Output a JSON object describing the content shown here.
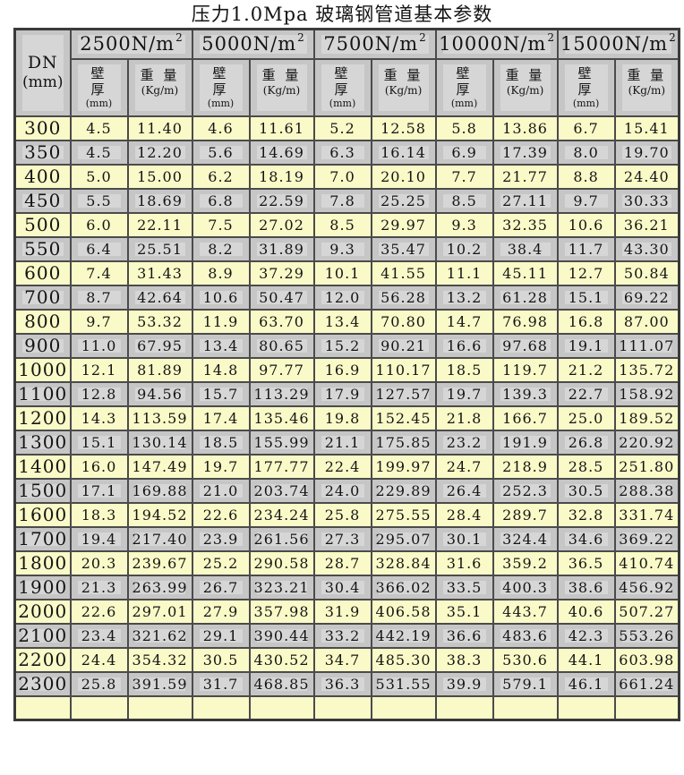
{
  "title": "压力1.0Mpa 玻璃钢管道基本参数",
  "colors": {
    "page_bg": "#ffffff",
    "row_yellow": "#fafac8",
    "row_gray": "#c6c6c6",
    "cell_patch_gray": "#d6d6d6",
    "border": "#4b4b4b",
    "outer_border": "#3a3a3a",
    "text": "#141414"
  },
  "table": {
    "corner_header": {
      "line1": "DN",
      "line2": "(mm)"
    },
    "groups": [
      {
        "load": "2500N/m",
        "sup": "2"
      },
      {
        "load": "5000N/m",
        "sup": "2"
      },
      {
        "load": "7500N/m",
        "sup": "2"
      },
      {
        "load": "10000N/m",
        "sup": "2"
      },
      {
        "load": "15000N/m",
        "sup": "2"
      }
    ],
    "sub_header": {
      "thickness_lines": [
        "壁",
        "厚",
        "(mm)"
      ],
      "weight_lines": [
        "重 量",
        "(Kg/m)"
      ]
    },
    "has_partial_bottom_row": true,
    "rows": [
      {
        "dn": "300",
        "values": [
          "4.5",
          "11.40",
          "4.6",
          "11.61",
          "5.2",
          "12.58",
          "5.8",
          "13.86",
          "6.7",
          "15.41"
        ]
      },
      {
        "dn": "350",
        "values": [
          "4.5",
          "12.20",
          "5.6",
          "14.69",
          "6.3",
          "16.14",
          "6.9",
          "17.39",
          "8.0",
          "19.70"
        ]
      },
      {
        "dn": "400",
        "values": [
          "5.0",
          "15.00",
          "6.2",
          "18.19",
          "7.0",
          "20.10",
          "7.7",
          "21.77",
          "8.8",
          "24.40"
        ]
      },
      {
        "dn": "450",
        "values": [
          "5.5",
          "18.69",
          "6.8",
          "22.59",
          "7.8",
          "25.25",
          "8.5",
          "27.11",
          "9.7",
          "30.33"
        ]
      },
      {
        "dn": "500",
        "values": [
          "6.0",
          "22.11",
          "7.5",
          "27.02",
          "8.5",
          "29.97",
          "9.3",
          "32.35",
          "10.6",
          "36.21"
        ]
      },
      {
        "dn": "550",
        "values": [
          "6.4",
          "25.51",
          "8.2",
          "31.89",
          "9.3",
          "35.47",
          "10.2",
          "38.4",
          "11.7",
          "43.30"
        ]
      },
      {
        "dn": "600",
        "values": [
          "7.4",
          "31.43",
          "8.9",
          "37.29",
          "10.1",
          "41.55",
          "11.1",
          "45.11",
          "12.7",
          "50.84"
        ]
      },
      {
        "dn": "700",
        "values": [
          "8.7",
          "42.64",
          "10.6",
          "50.47",
          "12.0",
          "56.28",
          "13.2",
          "61.28",
          "15.1",
          "69.22"
        ]
      },
      {
        "dn": "800",
        "values": [
          "9.7",
          "53.32",
          "11.9",
          "63.70",
          "13.4",
          "70.80",
          "14.7",
          "76.98",
          "16.8",
          "87.00"
        ]
      },
      {
        "dn": "900",
        "values": [
          "11.0",
          "67.95",
          "13.4",
          "80.65",
          "15.2",
          "90.21",
          "16.6",
          "97.68",
          "19.1",
          "111.07"
        ]
      },
      {
        "dn": "1000",
        "values": [
          "12.1",
          "81.89",
          "14.8",
          "97.77",
          "16.9",
          "110.17",
          "18.5",
          "119.7",
          "21.2",
          "135.72"
        ]
      },
      {
        "dn": "1100",
        "values": [
          "12.8",
          "94.56",
          "15.7",
          "113.29",
          "17.9",
          "127.57",
          "19.7",
          "139.3",
          "22.7",
          "158.92"
        ]
      },
      {
        "dn": "1200",
        "values": [
          "14.3",
          "113.59",
          "17.4",
          "135.46",
          "19.8",
          "152.45",
          "21.8",
          "166.7",
          "25.0",
          "189.52"
        ]
      },
      {
        "dn": "1300",
        "values": [
          "15.1",
          "130.14",
          "18.5",
          "155.99",
          "21.1",
          "175.85",
          "23.2",
          "191.9",
          "26.8",
          "220.92"
        ]
      },
      {
        "dn": "1400",
        "values": [
          "16.0",
          "147.49",
          "19.7",
          "177.77",
          "22.4",
          "199.97",
          "24.7",
          "218.9",
          "28.5",
          "251.80"
        ]
      },
      {
        "dn": "1500",
        "values": [
          "17.1",
          "169.88",
          "21.0",
          "203.74",
          "24.0",
          "229.89",
          "26.4",
          "252.3",
          "30.5",
          "288.38"
        ]
      },
      {
        "dn": "1600",
        "values": [
          "18.3",
          "194.52",
          "22.6",
          "234.24",
          "25.8",
          "275.55",
          "28.4",
          "289.7",
          "32.8",
          "331.74"
        ]
      },
      {
        "dn": "1700",
        "values": [
          "19.4",
          "217.40",
          "23.9",
          "261.56",
          "27.3",
          "295.07",
          "30.1",
          "324.4",
          "34.6",
          "369.22"
        ]
      },
      {
        "dn": "1800",
        "values": [
          "20.3",
          "239.67",
          "25.2",
          "290.58",
          "28.7",
          "328.84",
          "31.6",
          "359.2",
          "36.5",
          "410.74"
        ]
      },
      {
        "dn": "1900",
        "values": [
          "21.3",
          "263.99",
          "26.7",
          "323.21",
          "30.4",
          "366.02",
          "33.5",
          "400.3",
          "38.6",
          "456.92"
        ]
      },
      {
        "dn": "2000",
        "values": [
          "22.6",
          "297.01",
          "27.9",
          "357.98",
          "31.9",
          "406.58",
          "35.1",
          "443.7",
          "40.6",
          "507.27"
        ]
      },
      {
        "dn": "2100",
        "values": [
          "23.4",
          "321.62",
          "29.1",
          "390.44",
          "33.2",
          "442.19",
          "36.6",
          "483.6",
          "42.3",
          "553.26"
        ]
      },
      {
        "dn": "2200",
        "values": [
          "24.4",
          "354.32",
          "30.5",
          "430.52",
          "34.7",
          "485.30",
          "38.3",
          "530.6",
          "44.1",
          "603.98"
        ]
      },
      {
        "dn": "2300",
        "values": [
          "25.8",
          "391.59",
          "31.7",
          "468.85",
          "36.3",
          "531.55",
          "39.9",
          "579.1",
          "46.1",
          "661.24"
        ]
      }
    ]
  }
}
